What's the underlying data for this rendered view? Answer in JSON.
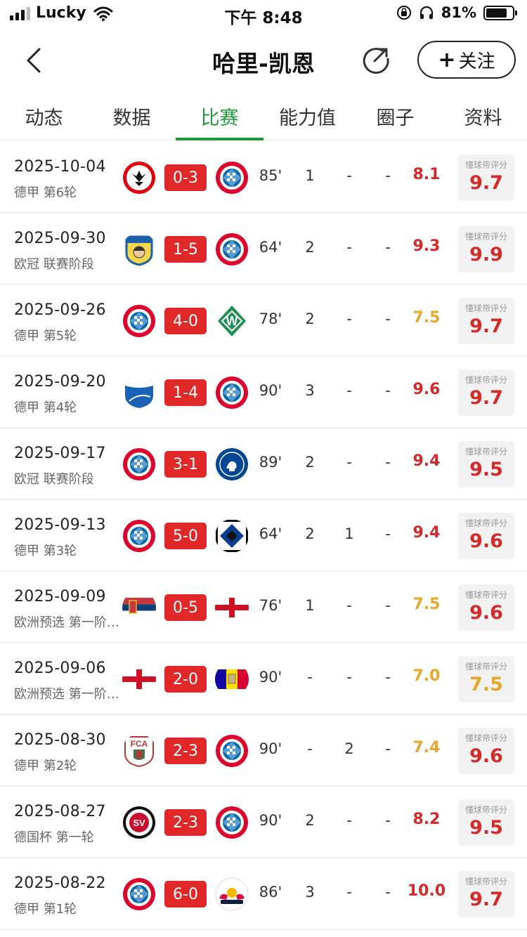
{
  "status_bar": {
    "carrier": "Lucky",
    "time": "下午 8:48",
    "battery": "81%",
    "battery_level": 0.81
  },
  "header": {
    "title": "哈里-凯恩",
    "follow_label": "关注"
  },
  "tabs": [
    {
      "label": "动态",
      "active": false
    },
    {
      "label": "数据",
      "active": false
    },
    {
      "label": "比赛",
      "active": true
    },
    {
      "label": "能力值",
      "active": false
    },
    {
      "label": "圈子",
      "active": false
    },
    {
      "label": "资料",
      "active": false
    }
  ],
  "badge_label": "懂球帝评分",
  "colors": {
    "accent": "#1e9a3c",
    "score_bg": "#e02828",
    "rating_red": "#d42a2a",
    "rating_orange": "#e6a72a"
  },
  "matches": [
    {
      "date": "2025-10-04",
      "competition": "德甲 第6轮",
      "home": "eintracht-frankfurt",
      "away": "bayern-munich",
      "score": "0-3",
      "minutes": "85'",
      "goals": "1",
      "assists": "-",
      "cards": "-",
      "rating": "8.1",
      "rating_color": "red",
      "dqd_rating": "9.7",
      "dqd_color": "red"
    },
    {
      "date": "2025-09-30",
      "competition": "欧冠 联赛阶段",
      "home": "pafos",
      "away": "bayern-munich",
      "score": "1-5",
      "minutes": "64'",
      "goals": "2",
      "assists": "-",
      "cards": "-",
      "rating": "9.3",
      "rating_color": "red",
      "dqd_rating": "9.9",
      "dqd_color": "red"
    },
    {
      "date": "2025-09-26",
      "competition": "德甲 第5轮",
      "home": "bayern-munich",
      "away": "werder-bremen",
      "score": "4-0",
      "minutes": "78'",
      "goals": "2",
      "assists": "-",
      "cards": "-",
      "rating": "7.5",
      "rating_color": "orange",
      "dqd_rating": "9.7",
      "dqd_color": "red"
    },
    {
      "date": "2025-09-20",
      "competition": "德甲 第4轮",
      "home": "hoffenheim",
      "away": "bayern-munich",
      "score": "1-4",
      "minutes": "90'",
      "goals": "3",
      "assists": "-",
      "cards": "-",
      "rating": "9.6",
      "rating_color": "red",
      "dqd_rating": "9.7",
      "dqd_color": "red"
    },
    {
      "date": "2025-09-17",
      "competition": "欧冠 联赛阶段",
      "home": "bayern-munich",
      "away": "chelsea",
      "score": "3-1",
      "minutes": "89'",
      "goals": "2",
      "assists": "-",
      "cards": "-",
      "rating": "9.4",
      "rating_color": "red",
      "dqd_rating": "9.5",
      "dqd_color": "red"
    },
    {
      "date": "2025-09-13",
      "competition": "德甲 第3轮",
      "home": "bayern-munich",
      "away": "hamburger-sv",
      "score": "5-0",
      "minutes": "64'",
      "goals": "2",
      "assists": "1",
      "cards": "-",
      "rating": "9.4",
      "rating_color": "red",
      "dqd_rating": "9.6",
      "dqd_color": "red"
    },
    {
      "date": "2025-09-09",
      "competition": "欧洲预选 第一阶…",
      "home": "serbia",
      "away": "england",
      "score": "0-5",
      "minutes": "76'",
      "goals": "1",
      "assists": "-",
      "cards": "-",
      "rating": "7.5",
      "rating_color": "orange",
      "dqd_rating": "9.6",
      "dqd_color": "red"
    },
    {
      "date": "2025-09-06",
      "competition": "欧洲预选 第一阶…",
      "home": "england",
      "away": "andorra",
      "score": "2-0",
      "minutes": "90'",
      "goals": "-",
      "assists": "-",
      "cards": "-",
      "rating": "7.0",
      "rating_color": "orange",
      "dqd_rating": "7.5",
      "dqd_color": "orange"
    },
    {
      "date": "2025-08-30",
      "competition": "德甲 第2轮",
      "home": "augsburg",
      "away": "bayern-munich",
      "score": "2-3",
      "minutes": "90'",
      "goals": "-",
      "assists": "2",
      "cards": "-",
      "rating": "7.4",
      "rating_color": "orange",
      "dqd_rating": "9.6",
      "dqd_color": "red"
    },
    {
      "date": "2025-08-27",
      "competition": "德国杯 第一轮",
      "home": "wehen-wiesbaden",
      "away": "bayern-munich",
      "score": "2-3",
      "minutes": "90'",
      "goals": "2",
      "assists": "-",
      "cards": "-",
      "rating": "8.2",
      "rating_color": "red",
      "dqd_rating": "9.5",
      "dqd_color": "red"
    },
    {
      "date": "2025-08-22",
      "competition": "德甲 第1轮",
      "home": "bayern-munich",
      "away": "rb-leipzig",
      "score": "6-0",
      "minutes": "86'",
      "goals": "3",
      "assists": "-",
      "cards": "-",
      "rating": "10.0",
      "rating_color": "red",
      "dqd_rating": "9.7",
      "dqd_color": "red"
    }
  ]
}
